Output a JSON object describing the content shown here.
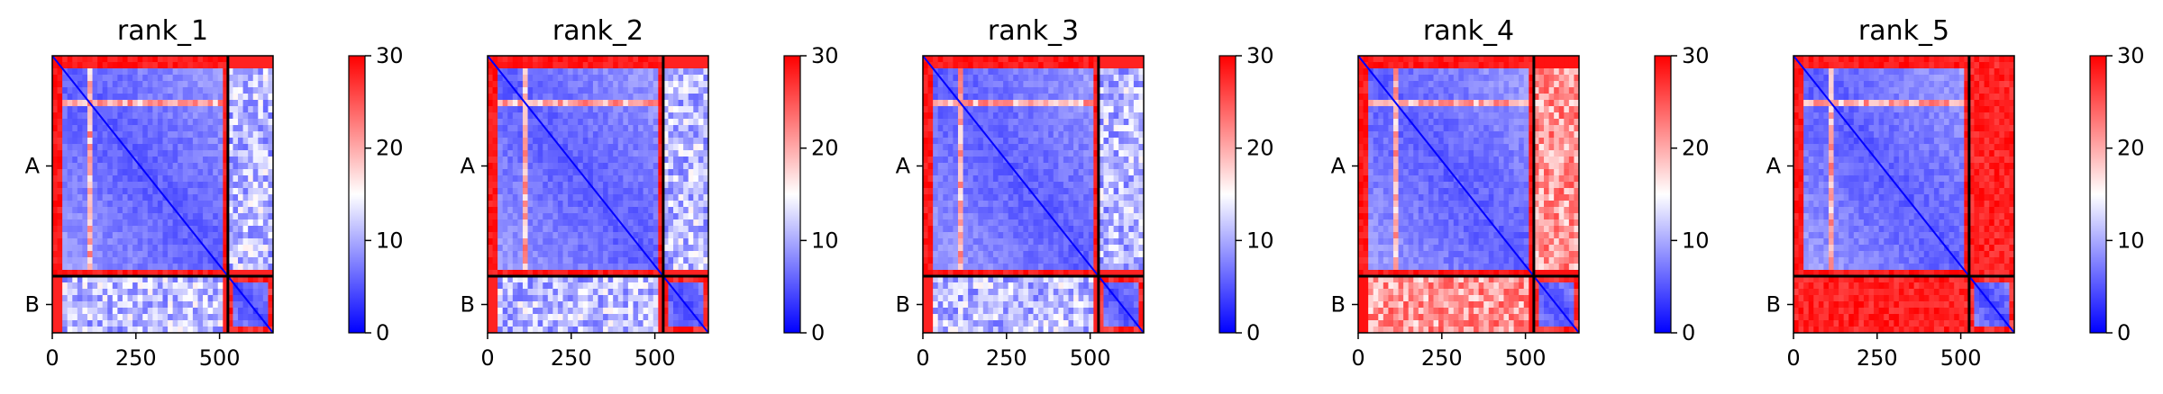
{
  "figure": {
    "cmap": {
      "low": "#0000ff",
      "mid": "#ffffff",
      "high": "#ff0000"
    },
    "vmin": 0,
    "vmax": 30
  },
  "chart_data": [
    {
      "type": "heatmap",
      "title": "rank_1",
      "x_range": [
        0,
        660
      ],
      "x_ticks": [
        0,
        250,
        500
      ],
      "chains": [
        {
          "name": "A",
          "start": 0,
          "end": 525
        },
        {
          "name": "B",
          "start": 525,
          "end": 660
        }
      ],
      "colorbar": {
        "range": [
          0,
          30
        ],
        "ticks": [
          0,
          10,
          20,
          30
        ]
      },
      "interchain_pae": "low"
    },
    {
      "type": "heatmap",
      "title": "rank_2",
      "x_range": [
        0,
        660
      ],
      "x_ticks": [
        0,
        250,
        500
      ],
      "chains": [
        {
          "name": "A",
          "start": 0,
          "end": 525
        },
        {
          "name": "B",
          "start": 525,
          "end": 660
        }
      ],
      "colorbar": {
        "range": [
          0,
          30
        ],
        "ticks": [
          0,
          10,
          20,
          30
        ]
      },
      "interchain_pae": "low"
    },
    {
      "type": "heatmap",
      "title": "rank_3",
      "x_range": [
        0,
        660
      ],
      "x_ticks": [
        0,
        250,
        500
      ],
      "chains": [
        {
          "name": "A",
          "start": 0,
          "end": 525
        },
        {
          "name": "B",
          "start": 525,
          "end": 660
        }
      ],
      "colorbar": {
        "range": [
          0,
          30
        ],
        "ticks": [
          0,
          10,
          20,
          30
        ]
      },
      "interchain_pae": "low"
    },
    {
      "type": "heatmap",
      "title": "rank_4",
      "x_range": [
        0,
        660
      ],
      "x_ticks": [
        0,
        250,
        500
      ],
      "chains": [
        {
          "name": "A",
          "start": 0,
          "end": 525
        },
        {
          "name": "B",
          "start": 525,
          "end": 660
        }
      ],
      "colorbar": {
        "range": [
          0,
          30
        ],
        "ticks": [
          0,
          10,
          20,
          30
        ]
      },
      "interchain_pae": "medium"
    },
    {
      "type": "heatmap",
      "title": "rank_5",
      "x_range": [
        0,
        660
      ],
      "x_ticks": [
        0,
        250,
        500
      ],
      "chains": [
        {
          "name": "A",
          "start": 0,
          "end": 525
        },
        {
          "name": "B",
          "start": 525,
          "end": 660
        }
      ],
      "colorbar": {
        "range": [
          0,
          30
        ],
        "ticks": [
          0,
          10,
          20,
          30
        ]
      },
      "interchain_pae": "high"
    }
  ]
}
